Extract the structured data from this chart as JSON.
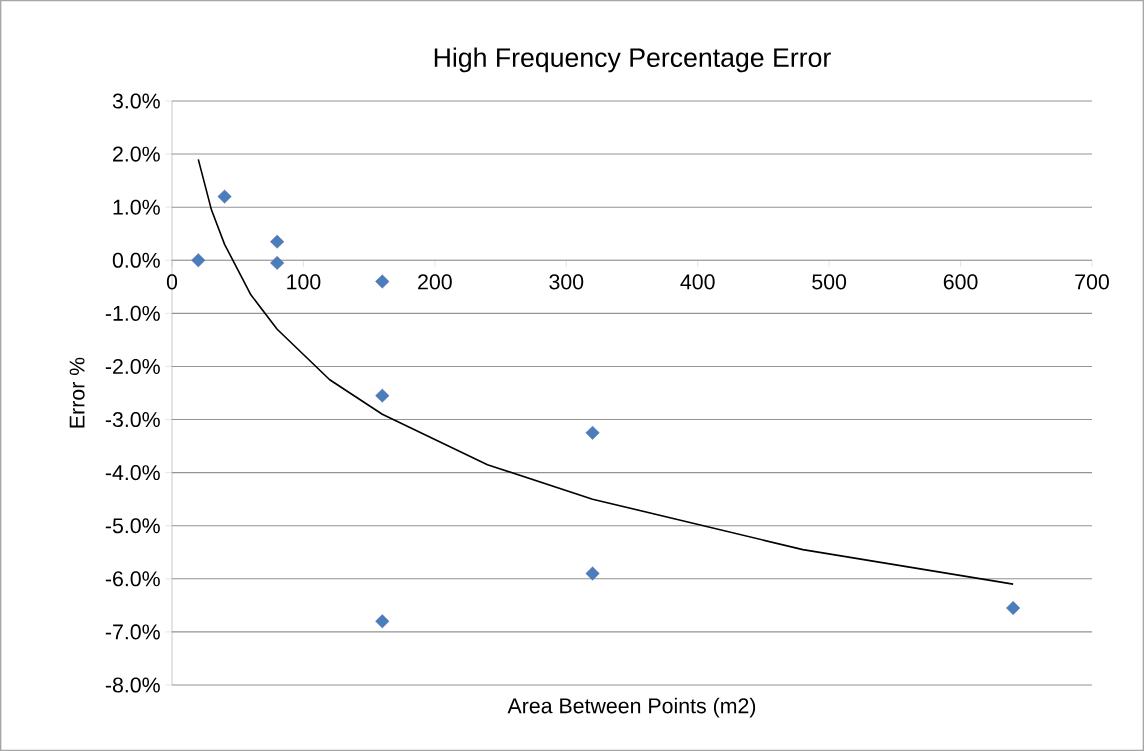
{
  "chart_data": {
    "type": "scatter",
    "title": "High Frequency Percentage Error",
    "xlabel": "Area Between Points (m2)",
    "ylabel": "Error  %",
    "xlim": [
      0,
      700
    ],
    "xticks": [
      0,
      100,
      200,
      300,
      400,
      500,
      600,
      700
    ],
    "ylim": [
      -8,
      3
    ],
    "yticks": [
      {
        "value": 3,
        "label": "3.0%"
      },
      {
        "value": 2,
        "label": "2.0%"
      },
      {
        "value": 1,
        "label": "1.0%"
      },
      {
        "value": 0,
        "label": "0.0%"
      },
      {
        "value": -1,
        "label": "-1.0%"
      },
      {
        "value": -2,
        "label": "-2.0%"
      },
      {
        "value": -3,
        "label": "-3.0%"
      },
      {
        "value": -4,
        "label": "-4.0%"
      },
      {
        "value": -5,
        "label": "-5.0%"
      },
      {
        "value": -6,
        "label": "-6.0%"
      },
      {
        "value": -7,
        "label": "-7.0%"
      },
      {
        "value": -8,
        "label": "-8.0%"
      }
    ],
    "grid": "y",
    "marker": "diamond",
    "series": [
      {
        "color": "#4a7ebb",
        "x": [
          20,
          40,
          80,
          80,
          160,
          160,
          160,
          320,
          320,
          640
        ],
        "values": [
          0.0,
          1.2,
          0.35,
          -0.05,
          -0.4,
          -2.55,
          -6.8,
          -3.25,
          -5.9,
          -6.55
        ]
      },
      {
        "type": "line",
        "color": "#000000",
        "marker": "none",
        "x": [
          20,
          30,
          40,
          60,
          80,
          120,
          160,
          240,
          320,
          480,
          640
        ],
        "values": [
          1.9,
          0.95,
          0.3,
          -0.65,
          -1.3,
          -2.25,
          -2.9,
          -3.85,
          -4.5,
          -5.45,
          -6.1
        ]
      }
    ]
  }
}
